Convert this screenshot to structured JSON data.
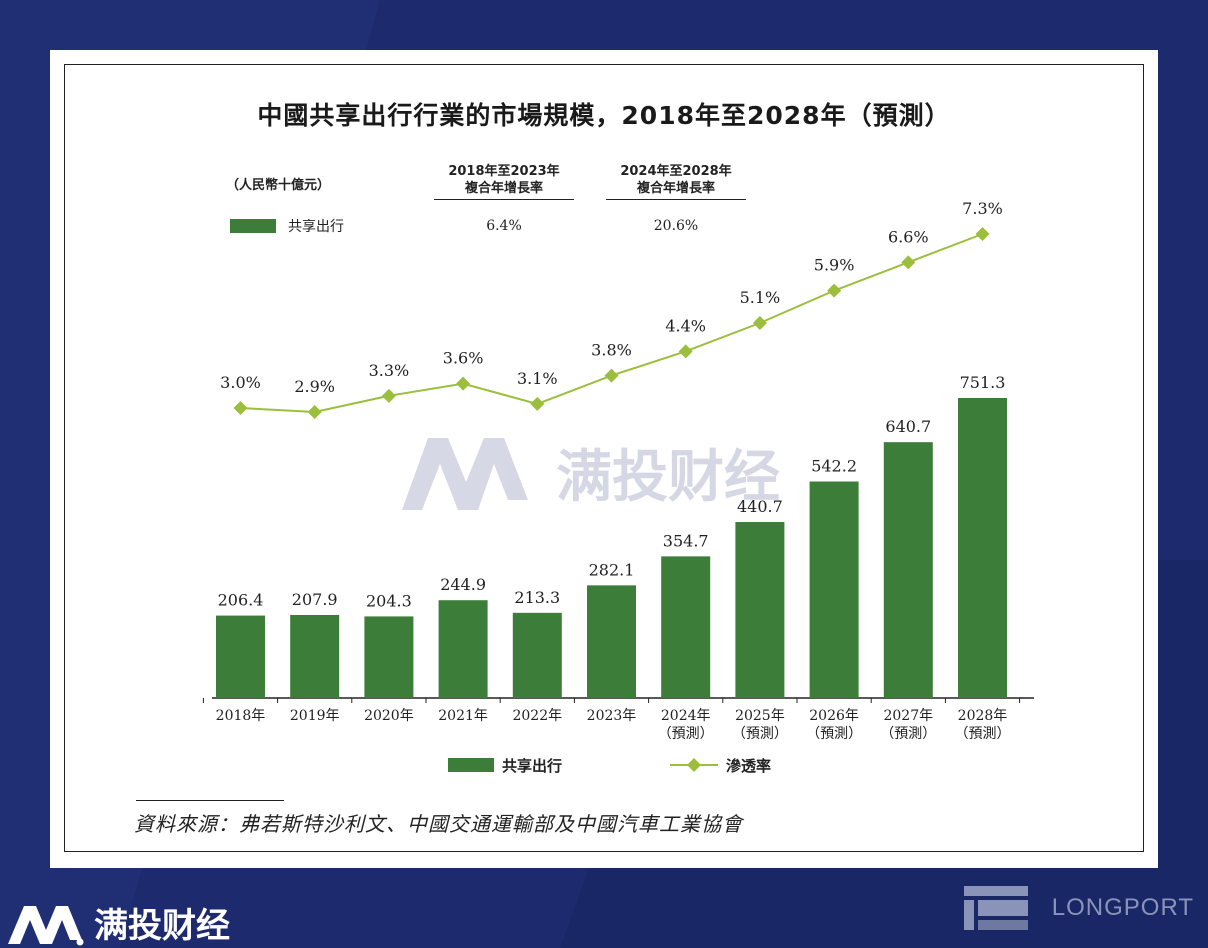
{
  "chart_data": {
    "type": "bar",
    "title": "中國共享出行行業的市場規模，2018年至2028年（預測）",
    "unit": "（人民幣十億元）",
    "categories": [
      "2018年",
      "2019年",
      "2020年",
      "2021年",
      "2022年",
      "2023年",
      "2024年\n（預測）",
      "2025年\n（預測）",
      "2026年\n（預測）",
      "2027年\n（預測）",
      "2028年\n（預測）"
    ],
    "series": [
      {
        "name": "共享出行",
        "type": "bar",
        "values": [
          206.4,
          207.9,
          204.3,
          244.9,
          213.3,
          282.1,
          354.7,
          440.7,
          542.2,
          640.7,
          751.3
        ],
        "color": "#3d7d3a"
      },
      {
        "name": "滲透率",
        "type": "line",
        "values": [
          3.0,
          2.9,
          3.3,
          3.6,
          3.1,
          3.8,
          4.4,
          5.1,
          5.9,
          6.6,
          7.3
        ],
        "value_labels": [
          "3.0%",
          "2.9%",
          "3.3%",
          "3.6%",
          "3.1%",
          "3.8%",
          "4.4%",
          "5.1%",
          "5.9%",
          "6.6%",
          "7.3%"
        ],
        "color": "#9bbf3c"
      }
    ],
    "cagr": [
      {
        "period": "2018年至2023年",
        "label": "複合年增長率",
        "value": "6.4%"
      },
      {
        "period": "2024年至2028年",
        "label": "複合年增長率",
        "value": "20.6%"
      }
    ],
    "cagr_series_label": "共享出行",
    "legend": [
      "共享出行",
      "滲透率"
    ],
    "legend_position": "bottom",
    "grid": false,
    "source": "資料來源：弗若斯特沙利文、中國交通運輸部及中國汽車工業協會"
  },
  "watermark": "满投财经",
  "brand": {
    "name": "满投财经",
    "partner": "LONGPORT"
  },
  "colors": {
    "background": "#1d2a6e",
    "bar": "#3d7d3a",
    "line": "#9bbf3c"
  }
}
